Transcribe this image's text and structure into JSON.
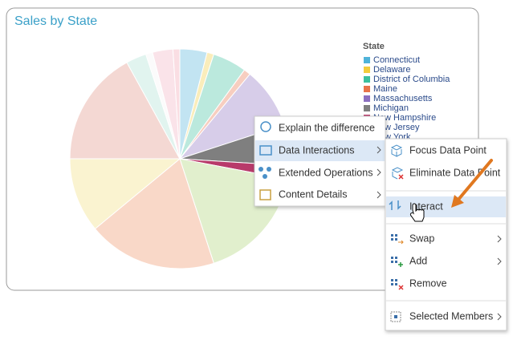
{
  "chart_data": {
    "type": "pie",
    "title": "Sales by State",
    "legend_title": "State",
    "categories": [
      "Connecticut",
      "Delaware",
      "District of Columbia",
      "Maine",
      "Massachusetts",
      "Michigan",
      "New Hampshire",
      "New Jersey",
      "New York",
      null,
      null,
      null,
      null,
      null,
      null
    ],
    "values": [
      4,
      1,
      5,
      1,
      9,
      6,
      2,
      17,
      19,
      11,
      17,
      3,
      1,
      3,
      1
    ],
    "colors": [
      "#4fb3d9",
      "#f2cc3c",
      "#3bbf9e",
      "#e8734a",
      "#8b6fc0",
      "#7f7f7f",
      "#b83a6a",
      "#a8d070",
      "#ee9060",
      "#f0dc78",
      "#e09080",
      "#a8e0d0",
      "#f4f4f4",
      "#f0b0c0",
      "#f0a0b0"
    ],
    "highlighted": [
      5,
      6
    ],
    "legend": "right"
  },
  "menus": [
    {
      "items": [
        {
          "label": "Explain the difference"
        },
        {
          "label": "Data Interactions"
        },
        {
          "label": "Extended Operations"
        },
        {
          "label": "Content Details"
        }
      ]
    },
    {
      "items": [
        {
          "label": "Focus Data Point"
        },
        {
          "label": "Eliminate Data Point"
        },
        {
          "label": "Interact"
        },
        {
          "label": "Swap"
        },
        {
          "label": "Add"
        },
        {
          "label": "Remove"
        },
        {
          "label": "Selected Members"
        }
      ]
    }
  ]
}
